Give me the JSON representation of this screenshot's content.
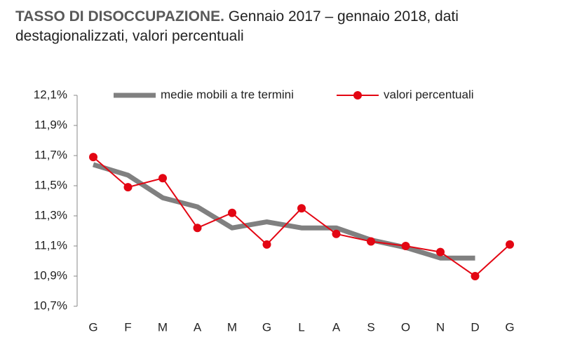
{
  "chart_data": {
    "type": "line",
    "title": "TASSO DI DISOCCUPAZIONE.",
    "subtitle": "Gennaio 2017 – gennaio 2018, dati destagionalizzati, valori percentuali",
    "categories": [
      "G",
      "F",
      "M",
      "A",
      "M",
      "G",
      "L",
      "A",
      "S",
      "O",
      "N",
      "D",
      "G"
    ],
    "series": [
      {
        "name": "medie mobili a tre termini",
        "color": "#808080",
        "style": "thick",
        "values": [
          11.64,
          11.57,
          11.42,
          11.36,
          11.22,
          11.26,
          11.22,
          11.22,
          11.14,
          11.09,
          11.02,
          11.02,
          null
        ]
      },
      {
        "name": "valori percentuali",
        "color": "#e30613",
        "style": "markers",
        "values": [
          11.69,
          11.49,
          11.55,
          11.22,
          11.32,
          11.11,
          11.35,
          11.18,
          11.13,
          11.1,
          11.06,
          10.9,
          11.11
        ]
      }
    ],
    "ylim": [
      10.7,
      12.1
    ],
    "yticks": [
      {
        "value": 10.7,
        "label": "10,7%"
      },
      {
        "value": 10.9,
        "label": "10,9%"
      },
      {
        "value": 11.1,
        "label": "11,1%"
      },
      {
        "value": 11.3,
        "label": "11,3%"
      },
      {
        "value": 11.5,
        "label": "11,5%"
      },
      {
        "value": 11.7,
        "label": "11,7%"
      },
      {
        "value": 11.9,
        "label": "11,9%"
      },
      {
        "value": 12.1,
        "label": "12,1%"
      }
    ],
    "legend": "top"
  }
}
